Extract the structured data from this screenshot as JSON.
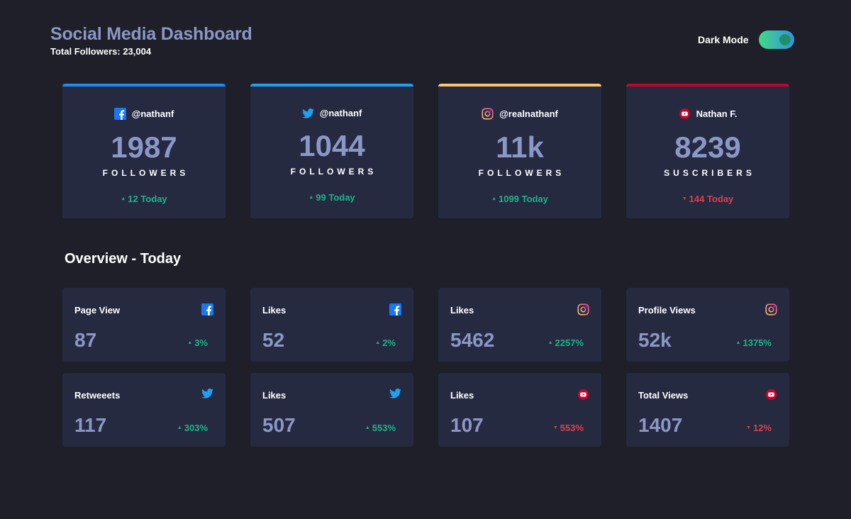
{
  "header": {
    "title": "Social Media Dashboard",
    "total_followers": "Total Followers: 23,004",
    "dark_mode_label": "Dark Mode",
    "dark_mode_on": true
  },
  "colors": {
    "facebook": "#1877f2",
    "twitter": "#1da1f2",
    "instagram_start": "#fdc468",
    "instagram_end": "#df4996",
    "youtube": "#c4032b",
    "up": "#1db489",
    "down": "#dc414c"
  },
  "cards": [
    {
      "network": "facebook",
      "icon": "facebook-icon",
      "handle": "@nathanf",
      "count": "1987",
      "unit": "FOLLOWERS",
      "today": "12 Today",
      "trend": "up"
    },
    {
      "network": "twitter",
      "icon": "twitter-icon",
      "handle": "@nathanf",
      "count": "1044",
      "unit": "FOLLOWERS",
      "today": "99 Today",
      "trend": "up"
    },
    {
      "network": "instagram",
      "icon": "instagram-icon",
      "handle": "@realnathanf",
      "count": "11k",
      "unit": "FOLLOWERS",
      "today": "1099 Today",
      "trend": "up"
    },
    {
      "network": "youtube",
      "icon": "youtube-icon",
      "handle": "Nathan F.",
      "count": "8239",
      "unit": "SUSCRIBERS",
      "today": "144 Today",
      "trend": "down"
    }
  ],
  "overview": {
    "title": "Overview - Today",
    "tiles": [
      {
        "label": "Page View",
        "network": "facebook",
        "value": "87",
        "pct": "3%",
        "trend": "up"
      },
      {
        "label": "Likes",
        "network": "facebook",
        "value": "52",
        "pct": "2%",
        "trend": "up"
      },
      {
        "label": "Likes",
        "network": "instagram",
        "value": "5462",
        "pct": "2257%",
        "trend": "up"
      },
      {
        "label": "Profile Views",
        "network": "instagram",
        "value": "52k",
        "pct": "1375%",
        "trend": "up"
      },
      {
        "label": "Retweeets",
        "network": "twitter",
        "value": "117",
        "pct": "303%",
        "trend": "up"
      },
      {
        "label": "Likes",
        "network": "twitter",
        "value": "507",
        "pct": "553%",
        "trend": "up"
      },
      {
        "label": "Likes",
        "network": "youtube",
        "value": "107",
        "pct": "553%",
        "trend": "down"
      },
      {
        "label": "Total Views",
        "network": "youtube",
        "value": "1407",
        "pct": "12%",
        "trend": "down"
      }
    ]
  }
}
